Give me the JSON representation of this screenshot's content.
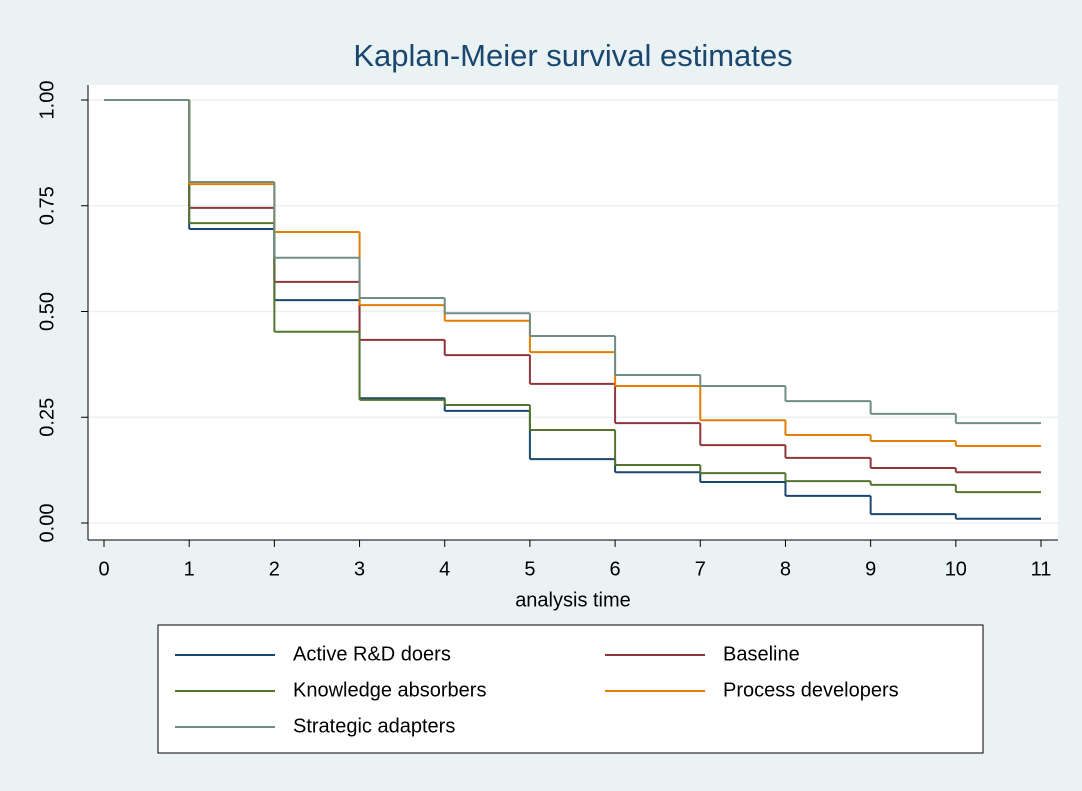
{
  "chart_data": {
    "type": "step",
    "title": "Kaplan-Meier survival estimates",
    "x_label": "analysis time",
    "x": [
      0,
      1,
      2,
      3,
      4,
      5,
      6,
      7,
      8,
      9,
      10
    ],
    "xlim": [
      0,
      11
    ],
    "xticks": [
      0,
      1,
      2,
      3,
      4,
      5,
      6,
      7,
      8,
      9,
      10,
      11
    ],
    "ylim": [
      0,
      1
    ],
    "yticks": [
      {
        "value": 0,
        "label": "0.00"
      },
      {
        "value": 0.25,
        "label": "0.25"
      },
      {
        "value": 0.5,
        "label": "0.50"
      },
      {
        "value": 0.75,
        "label": "0.75"
      },
      {
        "value": 1,
        "label": "1.00"
      }
    ],
    "grid": true,
    "series": [
      {
        "name": "Active R&D doers",
        "color": "#1a476f",
        "values": [
          1,
          0.695,
          0.527,
          0.295,
          0.265,
          0.151,
          0.12,
          0.097,
          0.064,
          0.021,
          0.01
        ]
      },
      {
        "name": "Baseline",
        "color": "#90353b",
        "values": [
          1,
          0.745,
          0.57,
          0.433,
          0.397,
          0.329,
          0.236,
          0.184,
          0.154,
          0.13,
          0.12
        ]
      },
      {
        "name": "Knowledge absorbers",
        "color": "#55752f",
        "values": [
          1,
          0.709,
          0.452,
          0.291,
          0.279,
          0.22,
          0.137,
          0.118,
          0.099,
          0.09,
          0.073
        ]
      },
      {
        "name": "Process developers",
        "color": "#e37e00",
        "values": [
          1,
          0.801,
          0.688,
          0.515,
          0.478,
          0.404,
          0.324,
          0.243,
          0.208,
          0.194,
          0.182
        ]
      },
      {
        "name": "Strategic adapters",
        "color": "#6e8e84",
        "values": [
          1,
          0.806,
          0.627,
          0.532,
          0.496,
          0.442,
          0.35,
          0.324,
          0.288,
          0.258,
          0.236
        ]
      }
    ]
  }
}
